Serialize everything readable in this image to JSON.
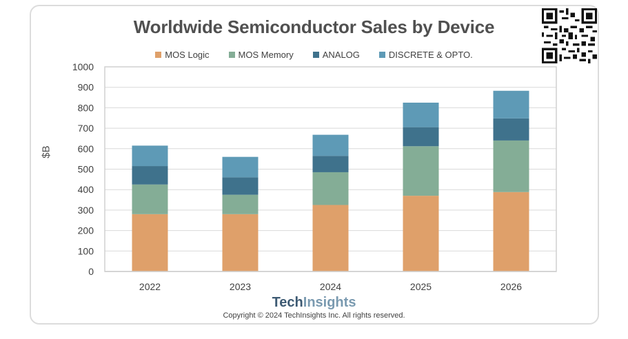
{
  "title": "Worldwide Semiconductor Sales by Device",
  "legend": [
    {
      "label": "MOS Logic",
      "color": "#dfa06a"
    },
    {
      "label": "MOS Memory",
      "color": "#84ad96"
    },
    {
      "label": "ANALOG",
      "color": "#3f728c"
    },
    {
      "label": "DISCRETE & OPTO.",
      "color": "#5e9ab6"
    }
  ],
  "ylabel": "$B",
  "footer": {
    "brand_bold": "Tech",
    "brand_light": "Insights",
    "copyright": "Copyright © 2024 TechInsights Inc.  All rights reserved."
  },
  "qr_code_icon": "qr-code",
  "chart_data": {
    "type": "bar",
    "stacked": true,
    "title": "Worldwide Semiconductor Sales by Device",
    "xlabel": "",
    "ylabel": "$B",
    "ylim": [
      0,
      1000
    ],
    "yticks": [
      0,
      100,
      200,
      300,
      400,
      500,
      600,
      700,
      800,
      900,
      1000
    ],
    "grid": true,
    "legend_position": "top-center",
    "categories": [
      "2022",
      "2023",
      "2024",
      "2025",
      "2026"
    ],
    "series": [
      {
        "name": "MOS Logic",
        "color": "#dfa06a",
        "values": [
          280,
          280,
          325,
          370,
          388
        ]
      },
      {
        "name": "MOS Memory",
        "color": "#84ad96",
        "values": [
          145,
          95,
          160,
          242,
          252
        ]
      },
      {
        "name": "ANALOG",
        "color": "#3f728c",
        "values": [
          90,
          85,
          80,
          93,
          108
        ]
      },
      {
        "name": "DISCRETE & OPTO.",
        "color": "#5e9ab6",
        "values": [
          100,
          100,
          103,
          120,
          135
        ]
      }
    ]
  }
}
